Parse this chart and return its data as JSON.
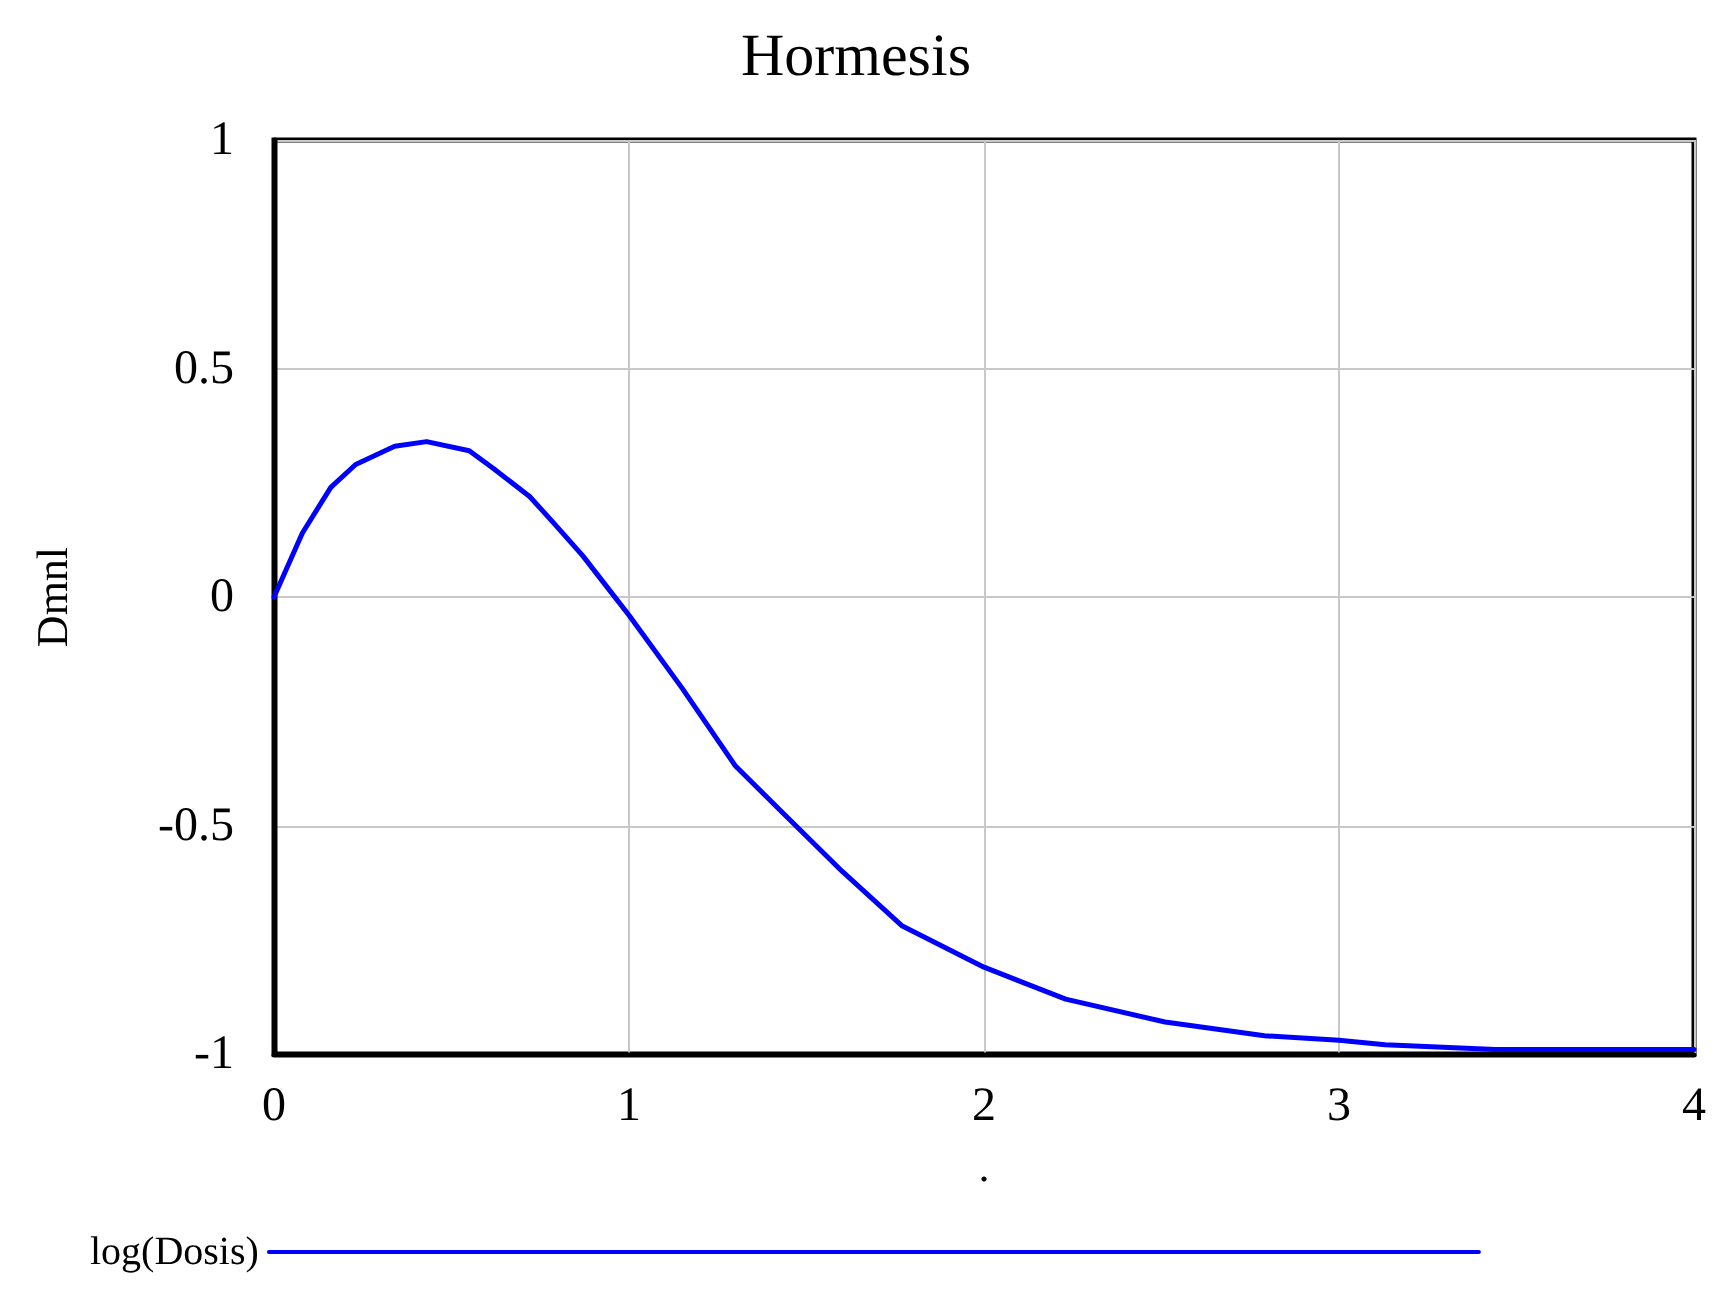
{
  "chart_data": {
    "type": "line",
    "title": "Hormesis",
    "xlabel": ".",
    "ylabel": "Dmnl",
    "xlim": [
      0,
      4
    ],
    "xticks": [
      0,
      1,
      2,
      3,
      4
    ],
    "ylim": [
      -1,
      1
    ],
    "yticks": [
      -1,
      -0.5,
      0,
      0.5,
      1
    ],
    "grid": true,
    "legend": "bottom",
    "marker": "none",
    "line_style": "solid",
    "series": [
      {
        "name": "log(Dosis)",
        "color": "#0000ff",
        "x": [
          0,
          0.08,
          0.16,
          0.23,
          0.34,
          0.43,
          0.55,
          0.62,
          0.72,
          0.79,
          0.87,
          0.94,
          1.0,
          1.15,
          1.3,
          1.43,
          1.6,
          1.77,
          2.0,
          2.23,
          2.51,
          2.79,
          3.0,
          3.13,
          3.44,
          4.0
        ],
        "values": [
          0,
          0.14,
          0.24,
          0.29,
          0.33,
          0.34,
          0.32,
          0.28,
          0.22,
          0.16,
          0.09,
          0.02,
          -0.04,
          -0.2,
          -0.37,
          -0.47,
          -0.6,
          -0.72,
          -0.81,
          -0.88,
          -0.93,
          -0.96,
          -0.97,
          -0.98,
          -0.99,
          -0.99
        ]
      }
    ]
  }
}
